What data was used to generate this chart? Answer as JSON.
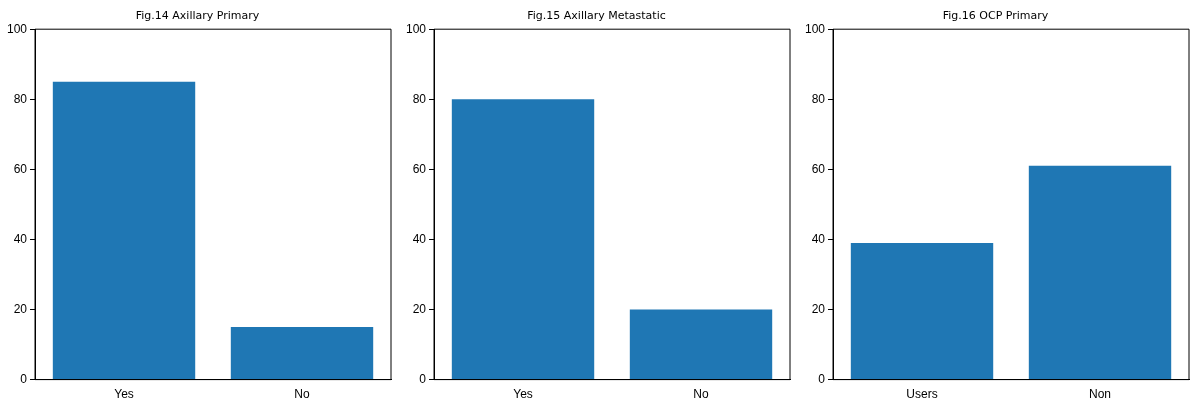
{
  "chart_data": [
    {
      "type": "bar",
      "title": "Fig.14 Axillary Primary",
      "categories": [
        "Yes",
        "No"
      ],
      "values": [
        85,
        15
      ],
      "color": "#1f77b4",
      "ylim": [
        0,
        100
      ],
      "yticks": [
        0,
        20,
        40,
        60,
        80,
        100
      ],
      "grid": false
    },
    {
      "type": "bar",
      "title": "Fig.15 Axillary Metastatic",
      "categories": [
        "Yes",
        "No"
      ],
      "values": [
        80,
        20
      ],
      "color": "#1f77b4",
      "ylim": [
        0,
        100
      ],
      "yticks": [
        0,
        20,
        40,
        60,
        80,
        100
      ],
      "grid": false
    },
    {
      "type": "bar",
      "title": "Fig.16 OCP Primary",
      "categories": [
        "Users",
        "Non"
      ],
      "values": [
        39,
        61
      ],
      "color": "#1f77b4",
      "ylim": [
        0,
        100
      ],
      "yticks": [
        0,
        20,
        40,
        60,
        80,
        100
      ],
      "grid": false
    }
  ]
}
